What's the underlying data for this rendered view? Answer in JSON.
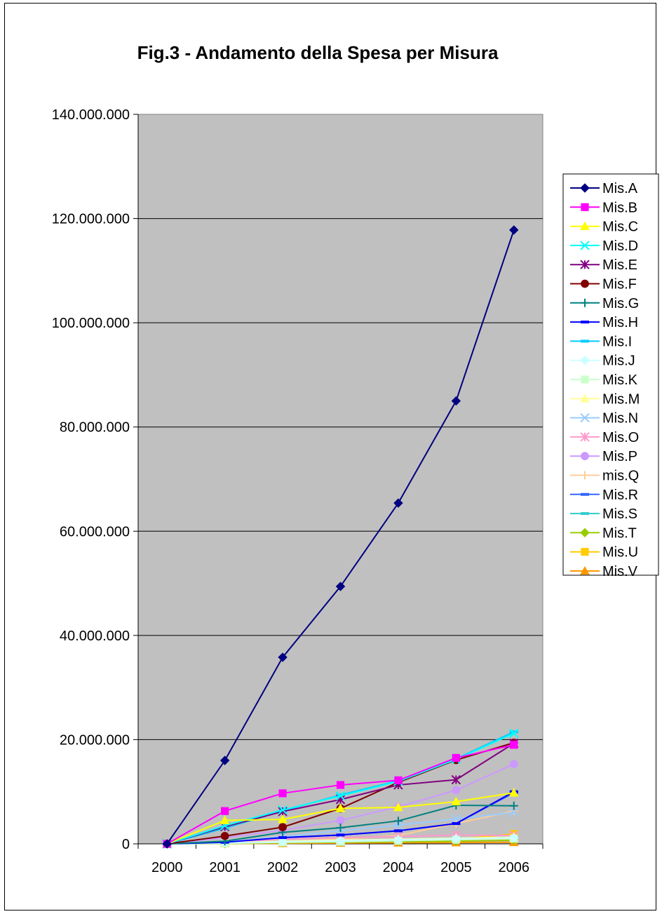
{
  "chart_data": {
    "type": "line",
    "title": "Fig.3 - Andamento della Spesa per Misura",
    "xlabel": "",
    "ylabel": "",
    "x": [
      "2000",
      "2001",
      "2002",
      "2003",
      "2004",
      "2005",
      "2006"
    ],
    "ylim": [
      0,
      140000000
    ],
    "yticks": [
      0,
      20000000,
      40000000,
      60000000,
      80000000,
      100000000,
      120000000,
      140000000
    ],
    "ytick_labels": [
      "0",
      "20.000.000",
      "40.000.000",
      "60.000.000",
      "80.000.000",
      "100.000.000",
      "120.000.000",
      "140.000.000"
    ],
    "grid": true,
    "legend_position": "right",
    "plot_background": "#C0C0C0",
    "series": [
      {
        "name": "Mis.A",
        "color": "#000080",
        "marker": "diamond",
        "values": [
          0,
          16000000,
          35800000,
          49400000,
          65400000,
          85000000,
          117800000
        ]
      },
      {
        "name": "Mis.B",
        "color": "#FF00FF",
        "marker": "square",
        "values": [
          0,
          6300000,
          9700000,
          11300000,
          12200000,
          16500000,
          19000000
        ]
      },
      {
        "name": "Mis.C",
        "color": "#FFFF00",
        "marker": "triangle",
        "values": [
          0,
          4500000,
          4700000,
          6800000,
          7000000,
          8100000,
          9800000
        ]
      },
      {
        "name": "Mis.D",
        "color": "#00FFFF",
        "marker": "x",
        "values": [
          0,
          3500000,
          6500000,
          9200000,
          12000000,
          16200000,
          21200000
        ]
      },
      {
        "name": "Mis.E",
        "color": "#800080",
        "marker": "star",
        "values": [
          0,
          3300000,
          6200000,
          8500000,
          11300000,
          12300000,
          19300000
        ]
      },
      {
        "name": "Mis.F",
        "color": "#800000",
        "marker": "circle",
        "values": [
          0,
          1500000,
          3200000,
          6800000,
          11800000,
          16100000,
          19400000
        ]
      },
      {
        "name": "Mis.G",
        "color": "#008080",
        "marker": "plus",
        "values": [
          0,
          500000,
          2200000,
          3100000,
          4400000,
          7400000,
          7300000
        ]
      },
      {
        "name": "Mis.H",
        "color": "#0000FF",
        "marker": "dash",
        "values": [
          0,
          300000,
          1200000,
          1700000,
          2500000,
          3900000,
          10000000
        ]
      },
      {
        "name": "Mis.I",
        "color": "#00CCFF",
        "marker": "dash",
        "values": [
          0,
          3000000,
          6300000,
          9400000,
          12100000,
          16300000,
          21500000
        ]
      },
      {
        "name": "Mis.J",
        "color": "#CCFFFF",
        "marker": "diamond",
        "values": [
          0,
          200000,
          400000,
          600000,
          800000,
          1000000,
          1200000
        ]
      },
      {
        "name": "Mis.K",
        "color": "#CCFFCC",
        "marker": "square",
        "values": [
          0,
          100000,
          300000,
          400000,
          600000,
          800000,
          1000000
        ]
      },
      {
        "name": "Mis.M",
        "color": "#FFFF99",
        "marker": "triangle",
        "values": [
          0,
          200000,
          500000,
          700000,
          900000,
          1100000,
          1300000
        ]
      },
      {
        "name": "Mis.N",
        "color": "#99CCFF",
        "marker": "x",
        "values": [
          0,
          300000,
          1400000,
          2500000,
          3600000,
          4800000,
          6000000
        ]
      },
      {
        "name": "Mis.O",
        "color": "#FF99CC",
        "marker": "star",
        "values": [
          0,
          300000,
          900000,
          1200000,
          1400000,
          1700000,
          1600000
        ]
      },
      {
        "name": "Mis.P",
        "color": "#CC99FF",
        "marker": "circle",
        "values": [
          0,
          1200000,
          2600000,
          4500000,
          7100000,
          10300000,
          15300000
        ]
      },
      {
        "name": "mis.Q",
        "color": "#FFCC99",
        "marker": "plus",
        "values": [
          0,
          200000,
          500000,
          900000,
          1600000,
          3900000,
          6300000
        ]
      },
      {
        "name": "Mis.R",
        "color": "#3366FF",
        "marker": "dash",
        "values": [
          0,
          300000,
          1200000,
          1700000,
          2500000,
          3900000,
          9800000
        ]
      },
      {
        "name": "Mis.S",
        "color": "#33CCCC",
        "marker": "dash",
        "values": [
          0,
          100000,
          300000,
          400000,
          600000,
          800000,
          1300000
        ]
      },
      {
        "name": "Mis.T",
        "color": "#99CC00",
        "marker": "diamond",
        "values": [
          0,
          50000,
          200000,
          300000,
          400000,
          500000,
          700000
        ]
      },
      {
        "name": "Mis.U",
        "color": "#FFCC00",
        "marker": "square",
        "values": [
          0,
          100000,
          300000,
          500000,
          700000,
          900000,
          1900000
        ]
      },
      {
        "name": "Mis.V",
        "color": "#FF9900",
        "marker": "triangle",
        "values": [
          0,
          50000,
          100000,
          150000,
          200000,
          250000,
          300000
        ]
      }
    ]
  }
}
